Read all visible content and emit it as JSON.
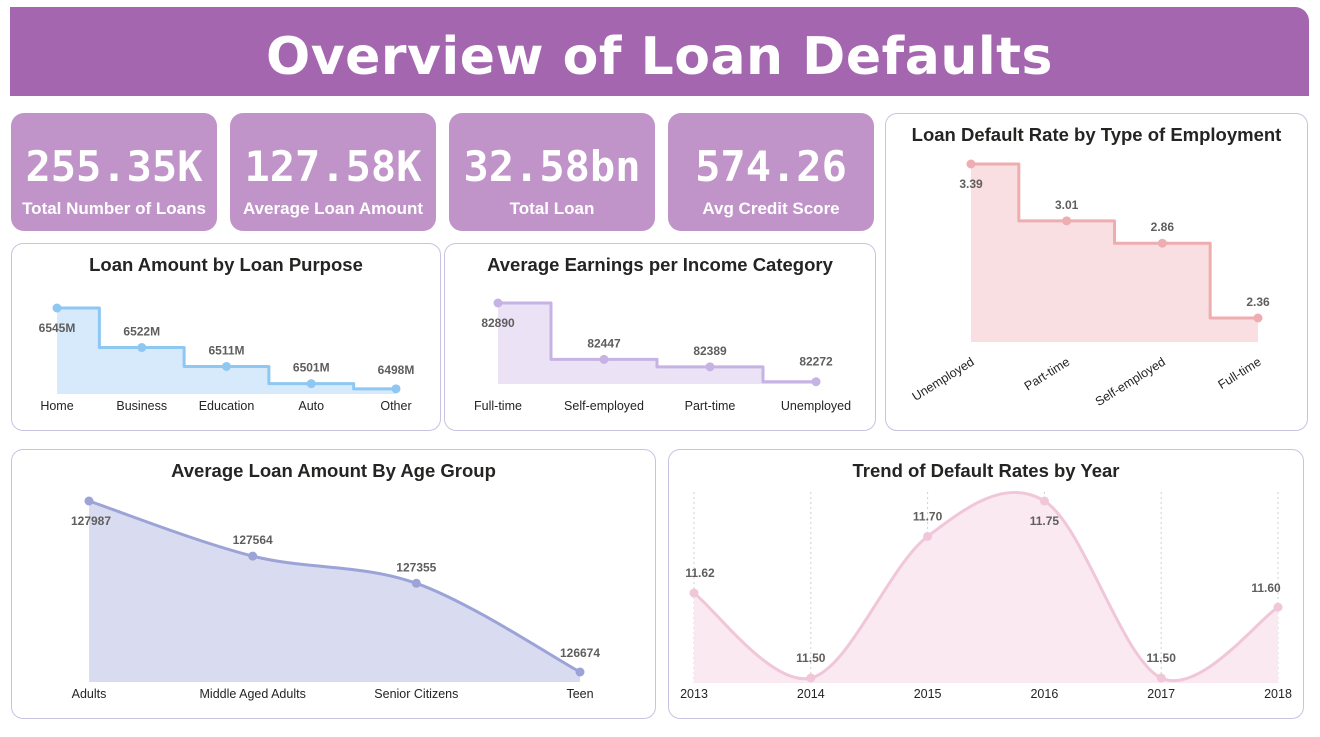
{
  "header": {
    "title": "Overview of Loan Defaults"
  },
  "kpis": [
    {
      "value": "255.35K",
      "label": "Total Number of Loans"
    },
    {
      "value": "127.58K",
      "label": "Average Loan Amount"
    },
    {
      "value": "32.58bn",
      "label": "Total Loan"
    },
    {
      "value": "574.26",
      "label": "Avg Credit Score"
    }
  ],
  "colors": {
    "banner": "#a566b0",
    "kpi_tile": "#c194c9",
    "purpose_line": "#8ec8f2",
    "purpose_fill": "#d6eafc",
    "earnings_line": "#c6b2e3",
    "earnings_fill": "#ebe3f5",
    "employment_line": "#eeadb1",
    "employment_fill": "#f9dfe1",
    "age_line": "#9ba3d7",
    "age_fill": "#d9dcf0",
    "trend_line": "#f0c6d9",
    "trend_fill": "#fbe9f1"
  },
  "chart_data": [
    {
      "id": "purpose",
      "type": "area",
      "title": "Loan Amount by Loan Purpose",
      "categories": [
        "Home",
        "Business",
        "Education",
        "Auto",
        "Other"
      ],
      "values": [
        6545,
        6522,
        6511,
        6501,
        6498
      ],
      "labels": [
        "6545M",
        "6522M",
        "6511M",
        "6501M",
        "6498M"
      ],
      "step": true,
      "xlabel": "",
      "ylabel": "",
      "grid": false
    },
    {
      "id": "earnings",
      "type": "area",
      "title": "Average Earnings per Income Category",
      "categories": [
        "Full-time",
        "Self-employed",
        "Part-time",
        "Unemployed"
      ],
      "values": [
        82890,
        82447,
        82389,
        82272
      ],
      "labels": [
        "82890",
        "82447",
        "82389",
        "82272"
      ],
      "step": true,
      "xlabel": "",
      "ylabel": "",
      "grid": false
    },
    {
      "id": "employment",
      "type": "area",
      "title": "Loan Default Rate by Type of Employment",
      "categories": [
        "Unemployed",
        "Part-time",
        "Self-employed",
        "Full-time"
      ],
      "values": [
        3.39,
        3.01,
        2.86,
        2.36
      ],
      "labels": [
        "3.39",
        "3.01",
        "2.86",
        "2.36"
      ],
      "step": true,
      "xlabel": "",
      "ylabel": "",
      "grid": false
    },
    {
      "id": "age",
      "type": "area",
      "title": "Average Loan Amount By Age Group",
      "categories": [
        "Adults",
        "Middle Aged Adults",
        "Senior Citizens",
        "Teen"
      ],
      "values": [
        127987,
        127564,
        127355,
        126674
      ],
      "labels": [
        "127987",
        "127564",
        "127355",
        "126674"
      ],
      "smooth": true,
      "xlabel": "",
      "ylabel": "",
      "grid": false
    },
    {
      "id": "trend",
      "type": "area",
      "title": "Trend of Default Rates by Year",
      "categories": [
        "2013",
        "2014",
        "2015",
        "2016",
        "2017",
        "2018"
      ],
      "values": [
        11.62,
        11.5,
        11.7,
        11.75,
        11.5,
        11.6
      ],
      "labels": [
        "11.62",
        "11.50",
        "11.70",
        "11.75",
        "11.50",
        "11.60"
      ],
      "smooth": true,
      "xlabel": "",
      "ylabel": "",
      "grid": true
    }
  ]
}
